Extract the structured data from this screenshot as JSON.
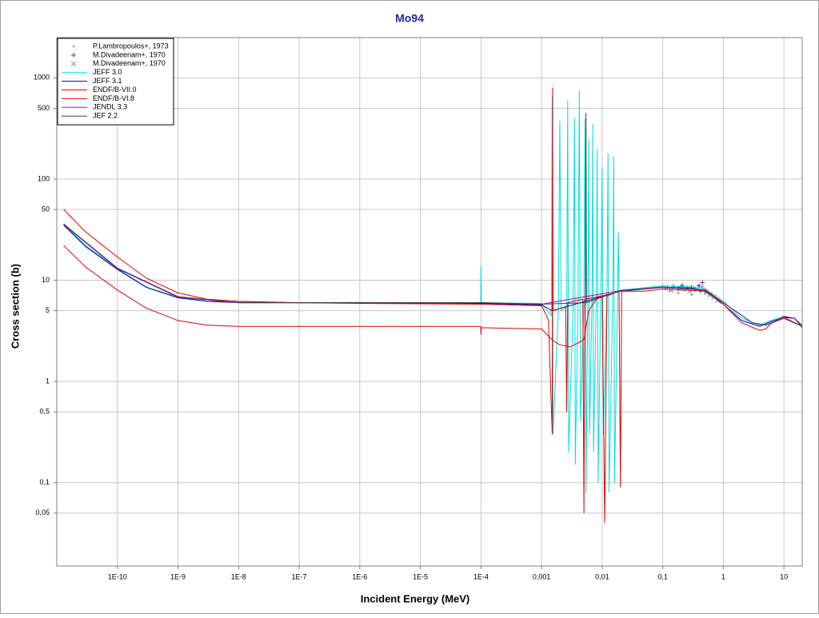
{
  "chart_data": {
    "type": "line",
    "title": "Mo94",
    "x_label": "Incident Energy (MeV)",
    "y_label": "Cross section (b)",
    "x_scale": "log",
    "y_scale": "log",
    "grid": true,
    "legend": "top-left",
    "xlim": [
      1e-11,
      20
    ],
    "ylim": [
      0.015,
      2500
    ],
    "xticks": [
      {
        "value": 1e-10,
        "label": "1E-10"
      },
      {
        "value": 1e-09,
        "label": "1E-9"
      },
      {
        "value": 1e-08,
        "label": "1E-8"
      },
      {
        "value": 1e-07,
        "label": "1E-7"
      },
      {
        "value": 1e-06,
        "label": "1E-6"
      },
      {
        "value": 1e-05,
        "label": "1E-5"
      },
      {
        "value": 0.0001,
        "label": "1E-4"
      },
      {
        "value": 0.001,
        "label": "0,001"
      },
      {
        "value": 0.01,
        "label": "0,01"
      },
      {
        "value": 0.1,
        "label": "0,1"
      },
      1,
      10
    ],
    "yticks": [
      {
        "value": 0.05,
        "label": "0,05"
      },
      {
        "value": 0.1,
        "label": "0,1"
      },
      {
        "value": 0.5,
        "label": "0,5"
      },
      1,
      5,
      10,
      50,
      100,
      500,
      1000
    ],
    "series": [
      {
        "name": "P.Lambropoulos+, 1973",
        "mode": "markers",
        "marker": "dot",
        "color": "#7fa8a8",
        "x": [
          0.11,
          0.13,
          0.15,
          0.18,
          0.2,
          0.23,
          0.26,
          0.3,
          0.34,
          0.38,
          0.42,
          0.46,
          0.5,
          0.55,
          0.6,
          0.7,
          0.8,
          0.9
        ],
        "values": [
          8.2,
          7.8,
          8.6,
          7.5,
          8.8,
          7.9,
          8.4,
          7.2,
          8.1,
          8.9,
          7.6,
          8.3,
          7.4,
          7.8,
          7.1,
          6.8,
          6.4,
          6
        ]
      },
      {
        "name": "M.Divadeenam+, 1970",
        "mode": "markers",
        "marker": "plus",
        "color": "#7030a0",
        "x": [
          0.12,
          0.15,
          0.18,
          0.21,
          0.25,
          0.3,
          0.35,
          0.4,
          0.45,
          0.5
        ],
        "values": [
          8.5,
          8.7,
          8.3,
          8.9,
          8.4,
          8.6,
          8.2,
          8.8,
          9.5,
          8
        ]
      },
      {
        "name": "M.Divadeenam+, 1970",
        "mode": "markers",
        "marker": "cross",
        "color": "#5f9f9f",
        "x": [
          0.14,
          0.2,
          0.28,
          0.36,
          0.44,
          0.52,
          0.6,
          0.7,
          0.8
        ],
        "values": [
          8,
          8.3,
          7.8,
          8.2,
          8.5,
          7.6,
          7.2,
          6.8,
          6.3
        ]
      },
      {
        "name": "JEFF 3.0",
        "mode": "line",
        "color": "#00e0e0",
        "x": [
          1.3e-11,
          3e-11,
          1e-10,
          3e-10,
          1e-09,
          3e-09,
          1e-08,
          1e-07,
          1e-06,
          1e-05,
          9.9e-05,
          0.0001,
          0.000102,
          0.001,
          0.0013,
          0.00145,
          0.0015,
          0.00155,
          0.0019,
          0.002,
          0.0021,
          0.0026,
          0.0027,
          0.0028,
          0.0033,
          0.0035,
          0.0036,
          0.004,
          0.0042,
          0.0044,
          0.005,
          0.0052,
          0.0054,
          0.0058,
          0.006,
          0.0062,
          0.0068,
          0.007,
          0.0072,
          0.008,
          0.0083,
          0.0086,
          0.0095,
          0.01,
          0.0105,
          0.012,
          0.0125,
          0.013,
          0.015,
          0.0155,
          0.016,
          0.018,
          0.0185,
          0.019,
          0.02,
          0.1,
          0.3,
          0.6,
          1,
          2,
          4,
          6,
          10,
          15,
          20
        ],
        "values": [
          36,
          22,
          13,
          8.6,
          6.8,
          6.2,
          6.1,
          6,
          6,
          6,
          6,
          14,
          6,
          5.9,
          4.8,
          4.5,
          650,
          0.3,
          5.5,
          380,
          5,
          5.5,
          600,
          0.2,
          5,
          400,
          0.15,
          6,
          750,
          0.4,
          6,
          400,
          0.08,
          7,
          250,
          0.3,
          7,
          350,
          0.2,
          7,
          200,
          0.1,
          7.5,
          130,
          0.3,
          7.5,
          180,
          0.08,
          7.5,
          170,
          0.1,
          7.5,
          30,
          7.5,
          8,
          8.8,
          8.6,
          7.6,
          6.2,
          4.2,
          3.6,
          4,
          4.4,
          4.2,
          3.6
        ]
      },
      {
        "name": "JEFF 3.1",
        "mode": "line",
        "color": "#0000c0",
        "x": [
          1.3e-11,
          3e-11,
          1e-10,
          3e-10,
          1e-09,
          3e-09,
          1e-08,
          1e-06,
          0.0001,
          0.001,
          0.0015,
          0.02,
          0.1,
          0.3,
          0.6,
          1,
          2,
          4,
          6,
          10,
          15,
          20
        ],
        "values": [
          35,
          21.5,
          12.8,
          8.5,
          6.7,
          6.2,
          6,
          6,
          5.9,
          5.7,
          5,
          7.8,
          8.5,
          8.4,
          7.5,
          5.8,
          4,
          3.5,
          3.9,
          4.3,
          4.2,
          3.4
        ]
      },
      {
        "name": "ENDF/B-VII.0",
        "mode": "line",
        "color": "#e00000",
        "x": [
          1.3e-11,
          3e-11,
          1e-10,
          3e-10,
          1e-09,
          3e-09,
          1e-08,
          1e-07,
          1e-06,
          0.0001,
          0.001,
          0.0012,
          0.0013,
          0.0015,
          0.00152,
          0.00155,
          0.0025,
          0.0026,
          0.0027,
          0.0048,
          0.005,
          0.0052,
          0.01,
          0.011,
          0.012,
          0.019,
          0.02,
          0.021,
          0.05,
          0.1,
          0.5,
          1,
          2,
          4,
          5,
          6,
          10,
          15,
          20
        ],
        "values": [
          50,
          30,
          17,
          10.5,
          7.5,
          6.5,
          6.2,
          6,
          5.9,
          5.8,
          5.6,
          4.5,
          4,
          0.3,
          800,
          5,
          5.5,
          0.5,
          6,
          6.5,
          0.05,
          6.5,
          7,
          0.04,
          7,
          7.8,
          0.09,
          7.8,
          7.8,
          8.2,
          7.8,
          5.8,
          3.8,
          3.2,
          3.3,
          3.7,
          4.4,
          4.2,
          3.5
        ]
      },
      {
        "name": "ENDF/B-VI.8",
        "mode": "line",
        "color": "#e00000",
        "x": [
          1.3e-11,
          3e-11,
          1e-10,
          3e-10,
          1e-09,
          3e-09,
          1e-08,
          1e-06,
          9.9e-05,
          0.0001,
          0.000101,
          0.001,
          0.0013,
          0.0016,
          0.002,
          0.003,
          0.004,
          0.005,
          0.006,
          0.008,
          0.01,
          0.02
        ],
        "values": [
          22,
          13.5,
          8,
          5.3,
          4,
          3.6,
          3.5,
          3.5,
          3.5,
          2.9,
          3.4,
          3.3,
          2.8,
          2.5,
          2.3,
          2.2,
          2.4,
          2.6,
          5,
          6.5,
          7,
          7.8
        ]
      },
      {
        "name": "JENDL 3.3",
        "mode": "line",
        "color": "#c000c0",
        "x": [
          1.3e-11,
          1e-10,
          1e-09,
          1e-08,
          1e-06,
          0.0001,
          0.001,
          0.02,
          0.1,
          0.5,
          1,
          3,
          5,
          10,
          20
        ],
        "values": [
          35.5,
          13,
          6.8,
          6,
          6,
          6,
          5.8,
          7.9,
          8.5,
          8,
          6,
          3.8,
          3.6,
          4.2,
          3.5
        ]
      },
      {
        "name": "JEF 2.2",
        "mode": "line",
        "color": "#404040",
        "x": [
          1.3e-11,
          1e-10,
          1e-09,
          1e-08,
          1e-06,
          0.0001,
          0.001,
          0.0053,
          0.0054,
          0.0055,
          0.02,
          0.1,
          0.5,
          1,
          3,
          5,
          10,
          20
        ],
        "values": [
          36,
          13.2,
          6.9,
          6,
          6,
          6,
          5.8,
          6,
          450,
          6,
          7.9,
          8.6,
          8,
          6,
          3.8,
          3.6,
          4.3,
          3.5
        ]
      }
    ]
  }
}
